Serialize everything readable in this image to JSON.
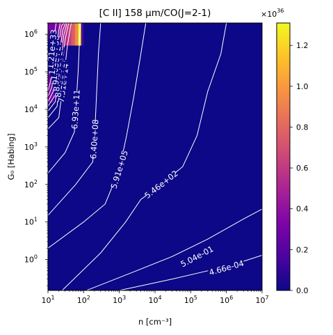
{
  "chart_data": {
    "type": "heatmap",
    "title": "[C II] 158 μm/CO(J=2-1)",
    "xlabel": "n [cm⁻³]",
    "ylabel": "G₀ [Habing]",
    "xscale": "log",
    "yscale": "log",
    "xlim": [
      10,
      10000000
    ],
    "ylim": [
      0.15,
      2000000
    ],
    "x_ticks": [
      {
        "value": 10,
        "base": "10",
        "exp": "1"
      },
      {
        "value": 100,
        "base": "10",
        "exp": "2"
      },
      {
        "value": 1000,
        "base": "10",
        "exp": "3"
      },
      {
        "value": 10000,
        "base": "10",
        "exp": "4"
      },
      {
        "value": 100000,
        "base": "10",
        "exp": "5"
      },
      {
        "value": 1000000,
        "base": "10",
        "exp": "6"
      },
      {
        "value": 10000000,
        "base": "10",
        "exp": "7"
      }
    ],
    "y_ticks": [
      {
        "value": 1,
        "base": "10",
        "exp": "0"
      },
      {
        "value": 10,
        "base": "10",
        "exp": "1"
      },
      {
        "value": 100,
        "base": "10",
        "exp": "2"
      },
      {
        "value": 1000,
        "base": "10",
        "exp": "3"
      },
      {
        "value": 10000,
        "base": "10",
        "exp": "4"
      },
      {
        "value": 100000,
        "base": "10",
        "exp": "5"
      },
      {
        "value": 1000000,
        "base": "10",
        "exp": "6"
      }
    ],
    "colorbar": {
      "colormap": "plasma",
      "min": 0,
      "max": 1.31,
      "scale_base": "×10",
      "scale_exp": "36",
      "ticks": [
        "0.0",
        "0.2",
        "0.4",
        "0.6",
        "0.8",
        "1.0",
        "1.2"
      ],
      "tick_values": [
        0.0,
        0.2,
        0.4,
        0.6,
        0.8,
        1.0,
        1.2
      ]
    },
    "hot_cells": [
      {
        "x_range": [
          10,
          14.5
        ],
        "y_range": [
          15000,
          2000000
        ],
        "value": 0.3
      },
      {
        "x_range": [
          14.5,
          19
        ],
        "y_range": [
          20000,
          2000000
        ],
        "value": 0.33
      },
      {
        "x_range": [
          19,
          24
        ],
        "y_range": [
          30000,
          2000000
        ],
        "value": 0.4
      },
      {
        "x_range": [
          24,
          29
        ],
        "y_range": [
          60000,
          2000000
        ],
        "value": 0.47
      },
      {
        "x_range": [
          29,
          36
        ],
        "y_range": [
          500000,
          2000000
        ],
        "value": 0.55
      },
      {
        "x_range": [
          36,
          45
        ],
        "y_range": [
          500000,
          2000000
        ],
        "value": 0.62
      },
      {
        "x_range": [
          45,
          56
        ],
        "y_range": [
          500000,
          2000000
        ],
        "value": 0.75
      },
      {
        "x_range": [
          56,
          70
        ],
        "y_range": [
          500000,
          2000000
        ],
        "value": 0.95
      },
      {
        "x_range": [
          70,
          85
        ],
        "y_range": [
          500000,
          2000000
        ],
        "value": 1.31
      },
      {
        "x_range": [
          85,
          100
        ],
        "y_range": [
          500000,
          2000000
        ],
        "value": 0.18
      }
    ],
    "contours": [
      {
        "label": "4.66e-04",
        "label_at": [
          1000000,
          0.6
        ],
        "points": [
          [
            1000,
            0.15
          ],
          [
            30000,
            0.3
          ],
          [
            300000,
            0.5
          ],
          [
            3000000,
            0.9
          ],
          [
            10000000,
            1.3
          ]
        ]
      },
      {
        "label": "5.04e-01",
        "label_at": [
          150000,
          1.2
        ],
        "points": [
          [
            120,
            0.15
          ],
          [
            3000,
            0.5
          ],
          [
            30000,
            1.2
          ],
          [
            300000,
            3.5
          ],
          [
            3000000,
            12
          ],
          [
            10000000,
            22
          ]
        ]
      },
      {
        "label": "5.46e+02",
        "label_at": [
          15000,
          100
        ],
        "points": [
          [
            25,
            0.15
          ],
          [
            300,
            1.5
          ],
          [
            1500,
            10
          ],
          [
            4000,
            40
          ],
          [
            15000,
            100
          ],
          [
            60000,
            300
          ],
          [
            150000,
            2000
          ],
          [
            300000,
            30000
          ],
          [
            700000,
            300000
          ],
          [
            1000000,
            2000000
          ]
        ]
      },
      {
        "label": "5.91e+05",
        "label_at": [
          1000,
          250
        ],
        "points": [
          [
            10,
            2
          ],
          [
            100,
            10
          ],
          [
            400,
            30
          ],
          [
            1000,
            250
          ],
          [
            1600,
            2000
          ],
          [
            2500,
            20000
          ],
          [
            4000,
            300000
          ],
          [
            5500,
            2000000
          ]
        ]
      },
      {
        "label": "6.40e+08",
        "label_at": [
          200,
          1600
        ],
        "points": [
          [
            10,
            15
          ],
          [
            60,
            100
          ],
          [
            180,
            400
          ],
          [
            200,
            1600
          ],
          [
            220,
            10000
          ],
          [
            260,
            300000
          ],
          [
            300,
            2000000
          ]
        ]
      },
      {
        "label": "6.93e+11",
        "label_at": [
          60,
          10000
        ],
        "points": [
          [
            10,
            200
          ],
          [
            30,
            700
          ],
          [
            55,
            2500
          ],
          [
            60,
            10000
          ],
          [
            70,
            100000
          ],
          [
            80,
            2000000
          ]
        ]
      },
      {
        "label": "7.51e+14",
        "label_at": [
          27,
          50000
        ],
        "points": [
          [
            10,
            3000
          ],
          [
            20,
            6000
          ],
          [
            27,
            50000
          ],
          [
            35,
            500000
          ],
          [
            45,
            2000000
          ]
        ]
      },
      {
        "label": "8.13e+17",
        "label_at": [
          22,
          70000
        ],
        "points": [
          [
            10,
            6000
          ],
          [
            18,
            12000
          ],
          [
            22,
            70000
          ],
          [
            30,
            700000
          ],
          [
            38,
            2000000
          ]
        ]
      },
      {
        "label": "8.81e+20",
        "label_at": [
          20,
          100000
        ],
        "points": [
          [
            10,
            9000
          ],
          [
            16,
            16000
          ],
          [
            20,
            100000
          ],
          [
            28,
            1000000
          ],
          [
            34,
            2000000
          ]
        ]
      },
      {
        "label": "9.54e+23",
        "label_at": [
          19,
          150000
        ],
        "points": [
          [
            10,
            12000
          ],
          [
            15,
            22000
          ],
          [
            19,
            150000
          ],
          [
            26,
            1300000
          ],
          [
            31,
            2000000
          ]
        ]
      },
      {
        "label": "1.03e+27",
        "label_at": [
          17,
          200000
        ],
        "points": [
          [
            10,
            16000
          ],
          [
            14,
            30000
          ],
          [
            17,
            200000
          ],
          [
            24,
            1700000
          ],
          [
            28,
            2000000
          ]
        ]
      },
      {
        "label": "1.12e+30",
        "label_at": [
          15,
          280000
        ],
        "points": [
          [
            10,
            22000
          ],
          [
            13,
            40000
          ],
          [
            15,
            280000
          ],
          [
            22,
            2000000
          ]
        ]
      },
      {
        "label": "1.21e+33",
        "label_at": [
          13,
          400000
        ],
        "points": [
          [
            10,
            30000
          ],
          [
            12,
            60000
          ],
          [
            13,
            400000
          ],
          [
            17,
            2000000
          ]
        ]
      }
    ]
  }
}
